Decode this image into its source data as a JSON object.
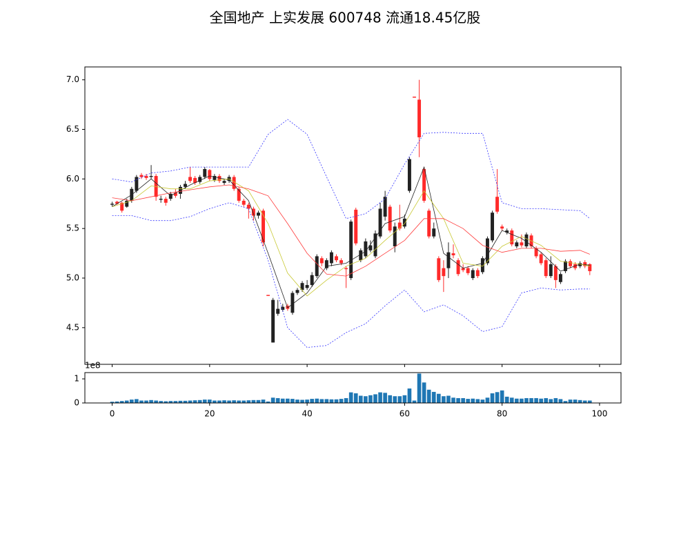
{
  "title": "全国地产 上实发展 600748 流通18.45亿股",
  "chart_data": [
    {
      "type": "candlestick",
      "xlim": [
        -5.6,
        104.4
      ],
      "xticks": [
        0,
        20,
        40,
        60,
        80,
        100
      ],
      "ylim": [
        4.13,
        7.13
      ],
      "yticks": [
        4.5,
        {
          "value": 5,
          "label": "5.0"
        },
        5.5,
        {
          "value": 6,
          "label": "6.0"
        },
        6.5,
        {
          "value": 7,
          "label": "7.0"
        }
      ],
      "up_color": "#ff2a2a",
      "down_color": "#222222",
      "x": [
        0,
        1,
        2,
        3,
        4,
        5,
        6,
        7,
        8,
        9,
        10,
        11,
        12,
        13,
        14,
        15,
        16,
        17,
        18,
        19,
        20,
        21,
        22,
        23,
        24,
        25,
        26,
        27,
        28,
        29,
        30,
        31,
        32,
        33,
        34,
        35,
        36,
        37,
        38,
        39,
        40,
        41,
        42,
        43,
        44,
        45,
        46,
        47,
        48,
        49,
        50,
        51,
        52,
        53,
        54,
        55,
        56,
        57,
        58,
        59,
        60,
        61,
        62,
        63,
        64,
        65,
        66,
        67,
        68,
        69,
        70,
        71,
        72,
        73,
        74,
        75,
        76,
        77,
        78,
        79,
        80,
        81,
        82,
        83,
        84,
        85,
        86,
        87,
        88,
        89,
        90,
        91,
        92,
        93,
        94,
        95,
        96,
        97,
        98
      ],
      "open": [
        5.75,
        5.75,
        5.68,
        5.78,
        5.9,
        6.02,
        6.02,
        6.01,
        6.03,
        5.82,
        5.8,
        5.76,
        5.85,
        5.83,
        5.92,
        5.95,
        5.98,
        5.96,
        6.02,
        6.1,
        6.0,
        6.03,
        5.98,
        5.98,
        6.02,
        5.9,
        5.78,
        5.74,
        5.7,
        5.63,
        5.66,
        5.36,
        4.82,
        4.78,
        4.69,
        4.71,
        4.69,
        4.85,
        4.88,
        4.95,
        4.93,
        5.03,
        5.22,
        5.15,
        5.18,
        5.26,
        5.18,
        5.15,
        5.09,
        5.57,
        5.35,
        5.28,
        5.37,
        5.33,
        5.45,
        5.7,
        5.82,
        5.48,
        5.52,
        5.5,
        5.6,
        6.2,
        6.82,
        6.42,
        5.78,
        5.42,
        5.5,
        4.98,
        5.02,
        5.26,
        5.23,
        5.04,
        5.08,
        5.05,
        5.08,
        5.02,
        5.2,
        5.4,
        5.66,
        5.67,
        5.5,
        5.48,
        5.34,
        5.36,
        5.33,
        5.44,
        5.32,
        5.22,
        5.15,
        5.02,
        5.14,
        4.98,
        5.04,
        5.17,
        5.12,
        5.1,
        5.15,
        5.12,
        5.07
      ],
      "high": [
        5.77,
        5.78,
        5.77,
        5.8,
        5.92,
        6.04,
        6.06,
        6.05,
        6.14,
        6.05,
        5.83,
        5.82,
        5.87,
        5.9,
        5.94,
        5.98,
        6.12,
        6.03,
        6.04,
        6.12,
        6.1,
        6.05,
        6.05,
        6.0,
        6.04,
        6.04,
        5.92,
        5.8,
        5.76,
        5.72,
        5.68,
        5.7,
        4.83,
        4.8,
        4.78,
        4.74,
        4.74,
        4.87,
        4.9,
        4.97,
        4.98,
        5.06,
        5.24,
        5.22,
        5.2,
        5.28,
        5.24,
        5.2,
        5.12,
        5.59,
        5.71,
        5.3,
        5.4,
        5.38,
        5.48,
        5.76,
        5.88,
        5.74,
        5.56,
        5.74,
        5.64,
        6.22,
        6.83,
        7.0,
        6.12,
        5.7,
        5.56,
        5.22,
        5.18,
        5.36,
        5.34,
        5.2,
        5.14,
        5.12,
        5.1,
        5.1,
        5.22,
        5.42,
        5.68,
        6.1,
        5.54,
        5.5,
        5.5,
        5.38,
        5.44,
        5.46,
        5.45,
        5.32,
        5.26,
        5.2,
        5.22,
        5.14,
        5.06,
        5.19,
        5.19,
        5.16,
        5.17,
        5.18,
        5.15
      ],
      "low": [
        5.72,
        5.74,
        5.66,
        5.71,
        5.76,
        5.86,
        6.0,
        5.99,
        6.0,
        5.78,
        5.76,
        5.73,
        5.78,
        5.81,
        5.8,
        5.9,
        5.96,
        5.94,
        5.95,
        6.0,
        5.98,
        5.97,
        5.96,
        5.94,
        5.96,
        5.88,
        5.76,
        5.72,
        5.6,
        5.58,
        5.6,
        5.32,
        4.82,
        4.35,
        4.62,
        4.66,
        4.67,
        4.63,
        4.83,
        4.86,
        4.88,
        4.91,
        5.0,
        5.12,
        5.08,
        5.12,
        5.16,
        5.13,
        4.9,
        4.98,
        5.33,
        5.16,
        5.2,
        5.26,
        5.2,
        5.4,
        5.58,
        5.46,
        5.26,
        5.48,
        5.5,
        5.86,
        6.82,
        6.22,
        5.76,
        5.4,
        5.4,
        4.96,
        4.86,
        5.0,
        5.2,
        5.02,
        5.06,
        5.03,
        4.98,
        5.0,
        5.04,
        5.13,
        5.36,
        5.65,
        5.48,
        5.44,
        5.32,
        5.3,
        5.31,
        5.3,
        5.3,
        5.2,
        5.13,
        5.0,
        5.0,
        4.9,
        4.94,
        5.05,
        5.1,
        5.08,
        5.1,
        5.1,
        5.03
      ],
      "close": [
        5.74,
        5.77,
        5.76,
        5.72,
        5.78,
        5.88,
        6.04,
        6.03,
        6.02,
        6.03,
        5.79,
        5.8,
        5.8,
        5.86,
        5.85,
        5.92,
        6.02,
        6.01,
        5.97,
        6.02,
        6.09,
        5.99,
        6.03,
        5.96,
        5.98,
        6.02,
        5.9,
        5.78,
        5.74,
        5.7,
        5.63,
        5.68,
        4.83,
        4.35,
        4.64,
        4.68,
        4.72,
        4.65,
        4.85,
        4.88,
        4.9,
        4.93,
        5.02,
        5.2,
        5.1,
        5.15,
        5.22,
        5.18,
        5.1,
        5.0,
        5.69,
        5.18,
        5.22,
        5.28,
        5.22,
        5.42,
        5.62,
        5.72,
        5.32,
        5.56,
        5.52,
        5.88,
        6.83,
        6.8,
        6.1,
        5.68,
        5.42,
        5.2,
        5.1,
        5.1,
        5.25,
        5.18,
        5.1,
        5.1,
        5.0,
        5.08,
        5.06,
        5.15,
        5.38,
        5.82,
        5.52,
        5.46,
        5.48,
        5.32,
        5.36,
        5.32,
        5.43,
        5.3,
        5.24,
        5.18,
        5.02,
        5.12,
        4.96,
        5.07,
        5.17,
        5.14,
        5.12,
        5.16,
        5.14
      ],
      "lines": [
        {
          "color": "#222222",
          "dash": false,
          "x": [
            0,
            4,
            8,
            12,
            16,
            20,
            24,
            28,
            32,
            36,
            40,
            44,
            48,
            52,
            56,
            60,
            64,
            68,
            72,
            76,
            80,
            84,
            88,
            92,
            96,
            98
          ],
          "values": [
            5.72,
            5.84,
            6.0,
            5.83,
            5.94,
            6.03,
            5.99,
            5.78,
            5.25,
            4.7,
            4.85,
            5.12,
            5.15,
            5.27,
            5.55,
            5.62,
            6.12,
            5.25,
            5.1,
            5.15,
            5.48,
            5.4,
            5.26,
            5.07,
            5.14,
            5.13
          ]
        },
        {
          "color": "#c8c832",
          "dash": false,
          "x": [
            0,
            4,
            8,
            12,
            16,
            20,
            24,
            28,
            32,
            36,
            40,
            44,
            48,
            52,
            56,
            60,
            64,
            68,
            72,
            76,
            80,
            84,
            88,
            92,
            96,
            98
          ],
          "values": [
            5.72,
            5.78,
            5.93,
            5.9,
            5.9,
            5.98,
            6.0,
            5.88,
            5.55,
            5.05,
            4.82,
            4.98,
            5.12,
            5.2,
            5.38,
            5.55,
            5.88,
            5.6,
            5.15,
            5.12,
            5.32,
            5.42,
            5.33,
            5.17,
            5.14,
            5.12
          ]
        },
        {
          "color": "#ff3a3a",
          "dash": false,
          "x": [
            0,
            4,
            8,
            12,
            16,
            20,
            24,
            28,
            32,
            36,
            40,
            44,
            48,
            52,
            56,
            60,
            64,
            68,
            72,
            76,
            80,
            84,
            88,
            92,
            96,
            98
          ],
          "values": [
            5.81,
            5.78,
            5.82,
            5.86,
            5.89,
            5.92,
            5.94,
            5.9,
            5.83,
            5.55,
            5.25,
            5.04,
            5.02,
            5.12,
            5.25,
            5.38,
            5.6,
            5.6,
            5.5,
            5.33,
            5.26,
            5.3,
            5.3,
            5.27,
            5.28,
            5.24
          ]
        },
        {
          "color": "#3333ff",
          "dash": true,
          "x": [
            0,
            4,
            8,
            12,
            16,
            20,
            24,
            28,
            32,
            36,
            40,
            44,
            48,
            52,
            56,
            60,
            64,
            68,
            72,
            76,
            80,
            84,
            88,
            92,
            96,
            98
          ],
          "values": [
            6.0,
            5.97,
            6.06,
            6.08,
            6.12,
            6.12,
            6.12,
            6.12,
            6.45,
            6.6,
            6.45,
            6.02,
            5.6,
            5.65,
            5.8,
            6.15,
            6.46,
            6.47,
            6.46,
            6.46,
            5.76,
            5.7,
            5.7,
            5.69,
            5.68,
            5.6
          ]
        },
        {
          "color": "#3333ff",
          "dash": true,
          "x": [
            0,
            4,
            8,
            12,
            16,
            20,
            24,
            28,
            32,
            36,
            40,
            44,
            48,
            52,
            56,
            60,
            64,
            68,
            72,
            76,
            80,
            84,
            88,
            92,
            96,
            98
          ],
          "values": [
            5.63,
            5.63,
            5.58,
            5.58,
            5.62,
            5.7,
            5.76,
            5.7,
            5.18,
            4.5,
            4.3,
            4.32,
            4.45,
            4.54,
            4.72,
            4.88,
            4.66,
            4.73,
            4.62,
            4.46,
            4.51,
            4.85,
            4.9,
            4.88,
            4.89,
            4.89
          ]
        }
      ]
    },
    {
      "type": "bar",
      "color": "#1f77b4",
      "offset_label": "1e8",
      "xlim": [
        -5.6,
        104.4
      ],
      "xticks": [
        0,
        20,
        40,
        60,
        80,
        100
      ],
      "ylim": [
        0,
        1.26
      ],
      "yticks": [
        0,
        1
      ],
      "x": [
        0,
        1,
        2,
        3,
        4,
        5,
        6,
        7,
        8,
        9,
        10,
        11,
        12,
        13,
        14,
        15,
        16,
        17,
        18,
        19,
        20,
        21,
        22,
        23,
        24,
        25,
        26,
        27,
        28,
        29,
        30,
        31,
        32,
        33,
        34,
        35,
        36,
        37,
        38,
        39,
        40,
        41,
        42,
        43,
        44,
        45,
        46,
        47,
        48,
        49,
        50,
        51,
        52,
        53,
        54,
        55,
        56,
        57,
        58,
        59,
        60,
        61,
        62,
        63,
        64,
        65,
        66,
        67,
        68,
        69,
        70,
        71,
        72,
        73,
        74,
        75,
        76,
        77,
        78,
        79,
        80,
        81,
        82,
        83,
        84,
        85,
        86,
        87,
        88,
        89,
        90,
        91,
        92,
        93,
        94,
        95,
        96,
        97,
        98
      ],
      "values": [
        0.05,
        0.06,
        0.08,
        0.1,
        0.14,
        0.16,
        0.1,
        0.1,
        0.12,
        0.1,
        0.08,
        0.07,
        0.08,
        0.08,
        0.09,
        0.09,
        0.1,
        0.11,
        0.12,
        0.14,
        0.14,
        0.1,
        0.1,
        0.11,
        0.1,
        0.11,
        0.1,
        0.1,
        0.11,
        0.12,
        0.12,
        0.14,
        0.06,
        0.22,
        0.2,
        0.18,
        0.18,
        0.17,
        0.14,
        0.13,
        0.14,
        0.17,
        0.18,
        0.16,
        0.16,
        0.15,
        0.15,
        0.17,
        0.2,
        0.44,
        0.4,
        0.3,
        0.28,
        0.32,
        0.36,
        0.44,
        0.42,
        0.32,
        0.28,
        0.28,
        0.32,
        0.6,
        0.1,
        1.22,
        0.85,
        0.55,
        0.46,
        0.38,
        0.28,
        0.3,
        0.22,
        0.2,
        0.2,
        0.17,
        0.18,
        0.16,
        0.14,
        0.22,
        0.4,
        0.45,
        0.52,
        0.26,
        0.22,
        0.18,
        0.18,
        0.2,
        0.2,
        0.2,
        0.18,
        0.2,
        0.16,
        0.2,
        0.16,
        0.08,
        0.14,
        0.14,
        0.12,
        0.1,
        0.1
      ]
    }
  ]
}
